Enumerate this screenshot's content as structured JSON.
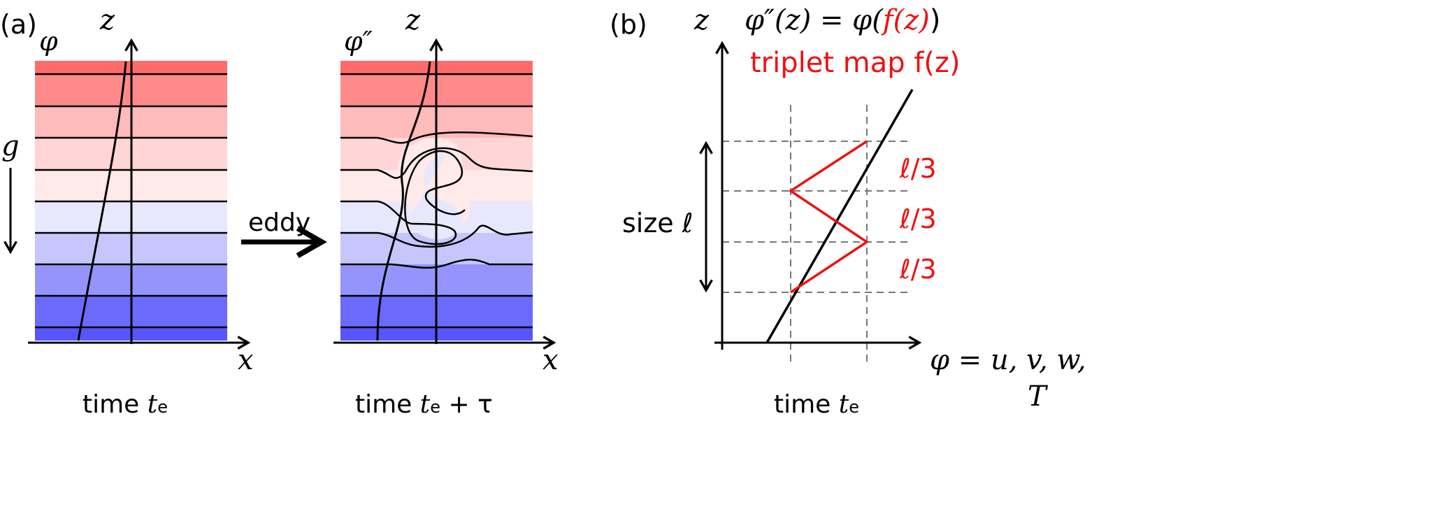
{
  "panel_a": {
    "label": "(a)",
    "z_axis": "z",
    "x_axis": "x",
    "phi_label": "φ",
    "phi_pp_label": "φ″",
    "gravity_label": "g",
    "eddy_label": "eddy",
    "time_left": "time",
    "time_left_var": "t",
    "time_left_sub": "e",
    "time_right": "time",
    "time_right_var": "t",
    "time_right_sub": "e",
    "time_right_suffix": " + τ"
  },
  "panel_b": {
    "label": "(b)",
    "z_axis": "z",
    "equation": "φ″(z) = φ(",
    "equation_red": "f(z)",
    "equation_end": ")",
    "triplet_map": "triplet map f(z)",
    "segments": [
      "ℓ/3",
      "ℓ/3",
      "ℓ/3"
    ],
    "size_label": "size ℓ",
    "phi_vars_line1": "φ = u, v, w,",
    "phi_vars_line2": "T",
    "time": "time",
    "time_var": "t",
    "time_sub": "e"
  },
  "colors": {
    "bands": [
      "#ff6b6b",
      "#ff8a8a",
      "#ffbaba",
      "#ffd5d5",
      "#ffe9e9",
      "#e8e8fc",
      "#c6c6fc",
      "#9494fc",
      "#6a6afc",
      "#5656fc"
    ],
    "red": "#ee1111"
  }
}
